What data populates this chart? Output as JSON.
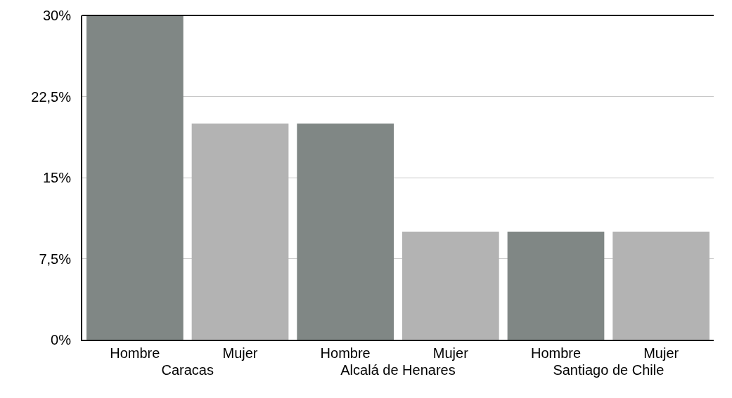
{
  "chart_data": {
    "type": "bar",
    "categories": [
      "Caracas",
      "Alcalá de Henares",
      "Santiago de Chile"
    ],
    "series": [
      {
        "name": "Hombre",
        "color": "#808785",
        "values": [
          30,
          20,
          10
        ]
      },
      {
        "name": "Mujer",
        "color": "#b3b3b3",
        "values": [
          20,
          10,
          10
        ]
      }
    ],
    "ylim": [
      0,
      30
    ],
    "yticks": [
      {
        "value": 0,
        "label": "0%"
      },
      {
        "value": 7.5,
        "label": "7,5%"
      },
      {
        "value": 15,
        "label": "15%"
      },
      {
        "value": 22.5,
        "label": "22,5%"
      },
      {
        "value": 30,
        "label": "30%"
      }
    ],
    "grid": "y",
    "legend": false
  }
}
